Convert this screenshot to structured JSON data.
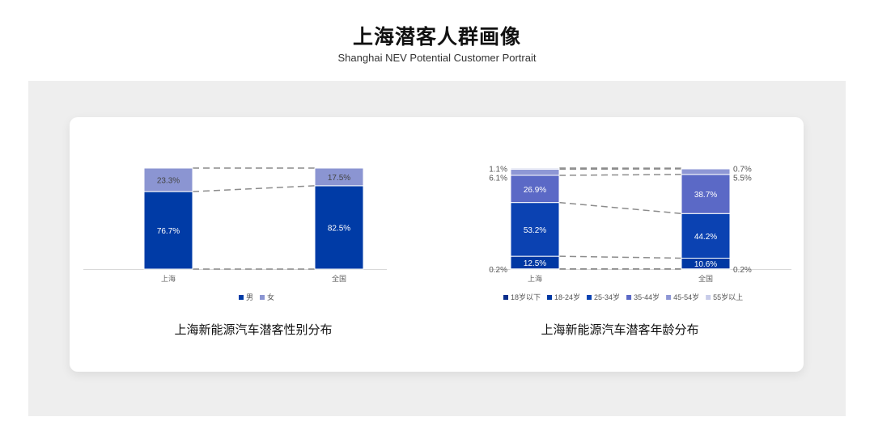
{
  "header": {
    "title": "上海潜客人群画像",
    "subtitle": "Shanghai NEV Potential Customer Portrait"
  },
  "captions": {
    "gender": "上海新能源汽车潜客性别分布",
    "age": "上海新能源汽车潜客年龄分布"
  },
  "chart_data": [
    {
      "type": "bar",
      "stacked": true,
      "percent": true,
      "categories": [
        "上海",
        "全国"
      ],
      "series": [
        {
          "name": "男",
          "values": [
            76.7,
            82.5
          ],
          "color": "#003ba6"
        },
        {
          "name": "女",
          "values": [
            23.3,
            17.5
          ],
          "color": "#8b95d2"
        }
      ],
      "ylim": [
        0,
        100
      ],
      "grid": false,
      "legend": "bottom",
      "connector_lines": "dashed"
    },
    {
      "type": "bar",
      "stacked": true,
      "percent": true,
      "categories": [
        "上海",
        "全国"
      ],
      "series": [
        {
          "name": "18岁以下",
          "values": [
            0.2,
            0.2
          ],
          "color": "#0a2f8c"
        },
        {
          "name": "18-24岁",
          "values": [
            12.5,
            10.6
          ],
          "color": "#0038a3"
        },
        {
          "name": "25-34岁",
          "values": [
            53.2,
            44.2
          ],
          "color": "#0b42b2"
        },
        {
          "name": "35-44岁",
          "values": [
            26.9,
            38.7
          ],
          "color": "#5b69c6"
        },
        {
          "name": "45-54岁",
          "values": [
            6.1,
            5.5
          ],
          "color": "#8e97d5"
        },
        {
          "name": "55岁以上",
          "values": [
            1.1,
            0.7
          ],
          "color": "#c8cce9"
        }
      ],
      "ylim": [
        0,
        100
      ],
      "grid": false,
      "legend": "bottom",
      "connector_lines": "dashed"
    }
  ]
}
